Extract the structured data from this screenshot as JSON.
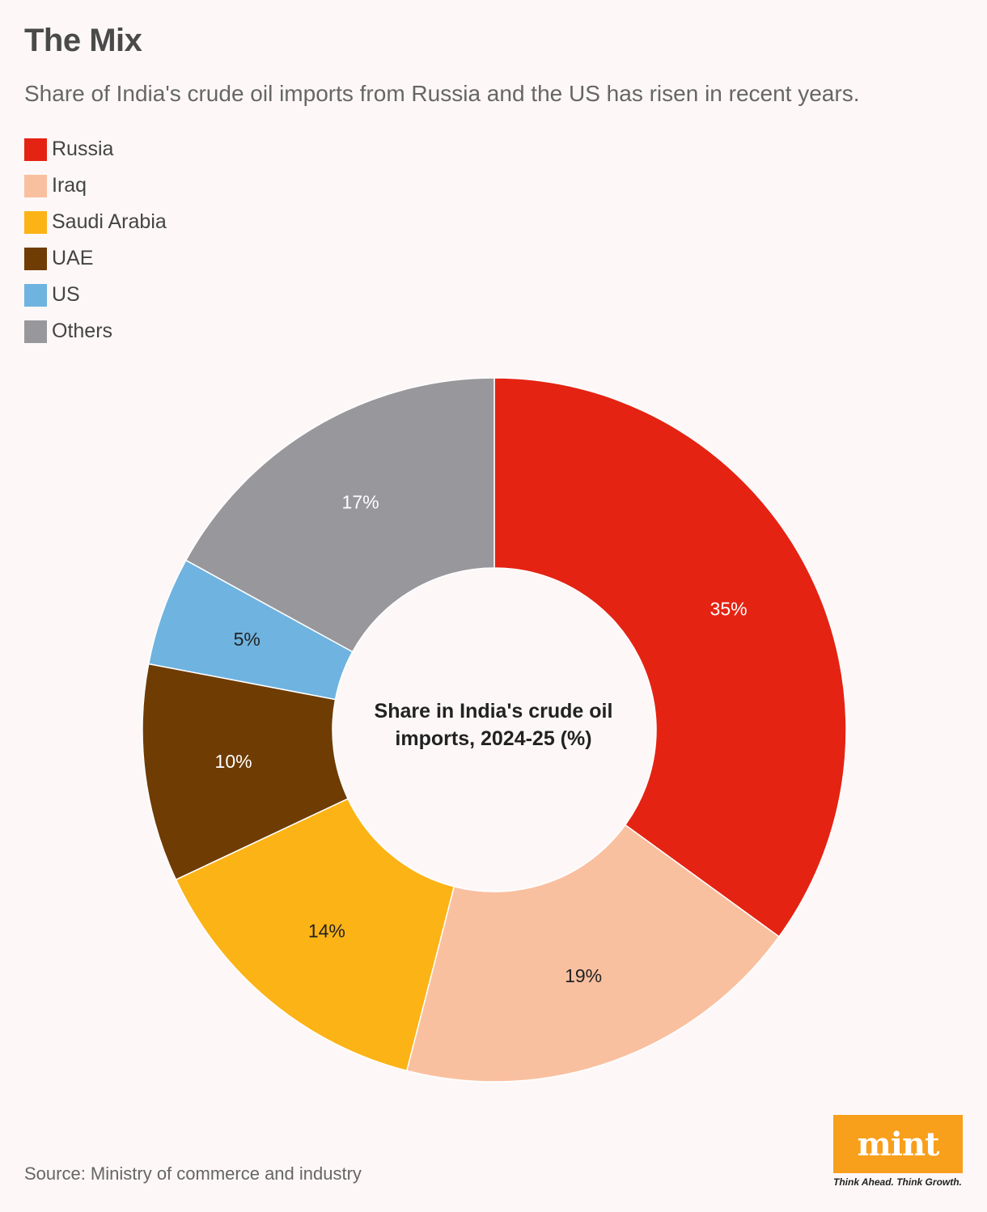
{
  "header": {
    "title": "The Mix",
    "subtitle": "Share of India's crude oil imports from Russia and the US has risen in recent years."
  },
  "legend": [
    {
      "label": "Russia",
      "color": "#e52313"
    },
    {
      "label": "Iraq",
      "color": "#f9c0a0"
    },
    {
      "label": "Saudi Arabia",
      "color": "#fcb316"
    },
    {
      "label": "UAE",
      "color": "#6f3c03"
    },
    {
      "label": "US",
      "color": "#6fb3e0"
    },
    {
      "label": "Others",
      "color": "#98989c"
    }
  ],
  "chart_data": {
    "type": "pie",
    "donut": true,
    "center_label": "Share in India's crude oil imports, 2024-25 (%)",
    "slices": [
      {
        "label": "Russia",
        "value": 35,
        "display": "35%",
        "color": "#e52313",
        "text_color": "#ffffff"
      },
      {
        "label": "Iraq",
        "value": 19,
        "display": "19%",
        "color": "#f9c0a0",
        "text_color": "#222222"
      },
      {
        "label": "Saudi Arabia",
        "value": 14,
        "display": "14%",
        "color": "#fcb316",
        "text_color": "#222222"
      },
      {
        "label": "UAE",
        "value": 10,
        "display": "10%",
        "color": "#6f3c03",
        "text_color": "#ffffff"
      },
      {
        "label": "US",
        "value": 5,
        "display": "5%",
        "color": "#6fb3e0",
        "text_color": "#222222"
      },
      {
        "label": "Others",
        "value": 17,
        "display": "17%",
        "color": "#98989c",
        "text_color": "#ffffff"
      }
    ],
    "start": "top",
    "direction": "clockwise"
  },
  "footer": {
    "source": "Source: Ministry of commerce and industry",
    "logo_text": "mint",
    "logo_tagline": "Think Ahead. Think Growth.",
    "logo_color": "#f89f1b"
  }
}
